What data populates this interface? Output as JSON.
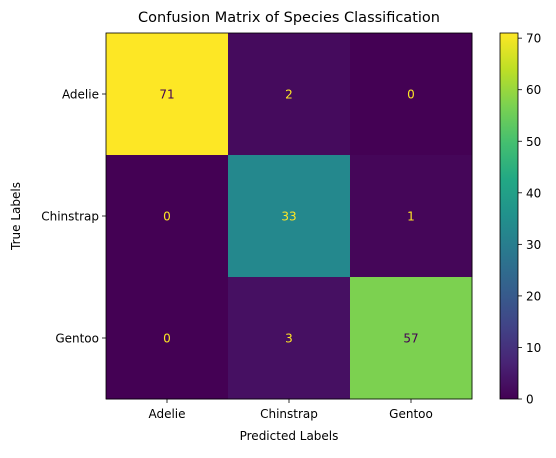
{
  "chart_data": {
    "type": "heatmap",
    "title": "Confusion Matrix of Species Classification",
    "xlabel": "Predicted Labels",
    "ylabel": "True Labels",
    "x_categories": [
      "Adelie",
      "Chinstrap",
      "Gentoo"
    ],
    "y_categories": [
      "Adelie",
      "Chinstrap",
      "Gentoo"
    ],
    "values": [
      [
        71,
        2,
        0
      ],
      [
        0,
        33,
        1
      ],
      [
        0,
        3,
        57
      ]
    ],
    "colormap": "viridis",
    "vmin": 0,
    "vmax": 71,
    "colorbar_ticks": [
      0,
      10,
      20,
      30,
      40,
      50,
      60,
      70
    ],
    "grid": false,
    "colors": {
      "low_text": "#fde725",
      "high_text": "#440154",
      "axis": "#000000"
    }
  }
}
